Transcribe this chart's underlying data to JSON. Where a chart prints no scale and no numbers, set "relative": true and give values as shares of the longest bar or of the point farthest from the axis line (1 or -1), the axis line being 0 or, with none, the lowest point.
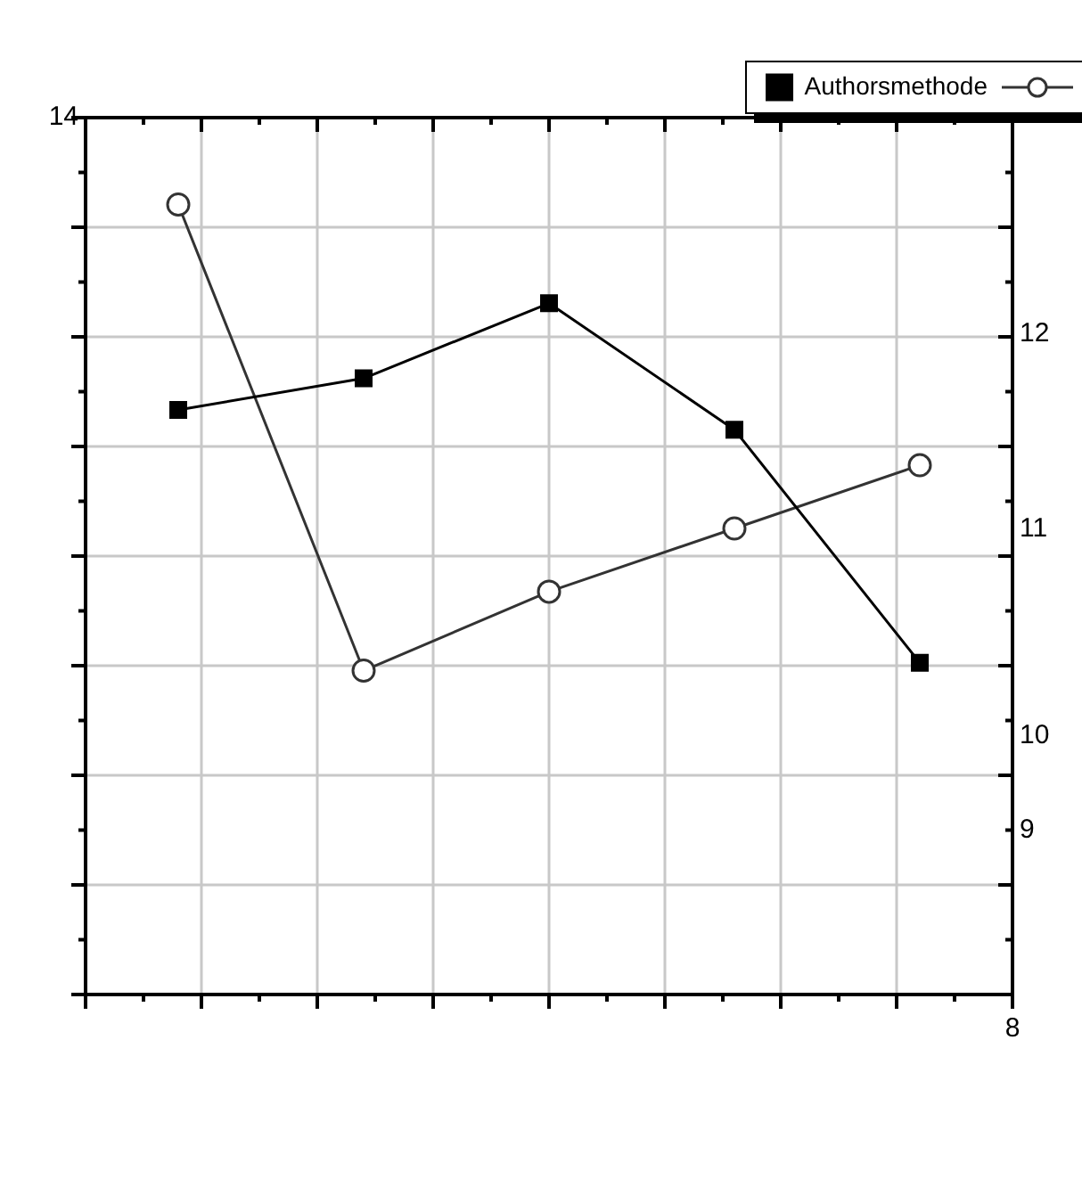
{
  "chart_data": {
    "type": "line",
    "relative": true,
    "categories": [
      null,
      null,
      null,
      null,
      null
    ],
    "grid": true,
    "legend": "top right",
    "annotations": [
      "14",
      "12",
      "11",
      "10",
      "9",
      "8"
    ],
    "series": [
      {
        "name": "Authorsmethode",
        "color": "#000000",
        "marker": "square",
        "values": [
          0.74,
          0.78,
          0.875,
          0.715,
          0.42
        ]
      },
      {
        "color": "#333333",
        "marker": "circle",
        "values": [
          1,
          0.41,
          0.51,
          0.59,
          0.67
        ]
      }
    ]
  }
}
